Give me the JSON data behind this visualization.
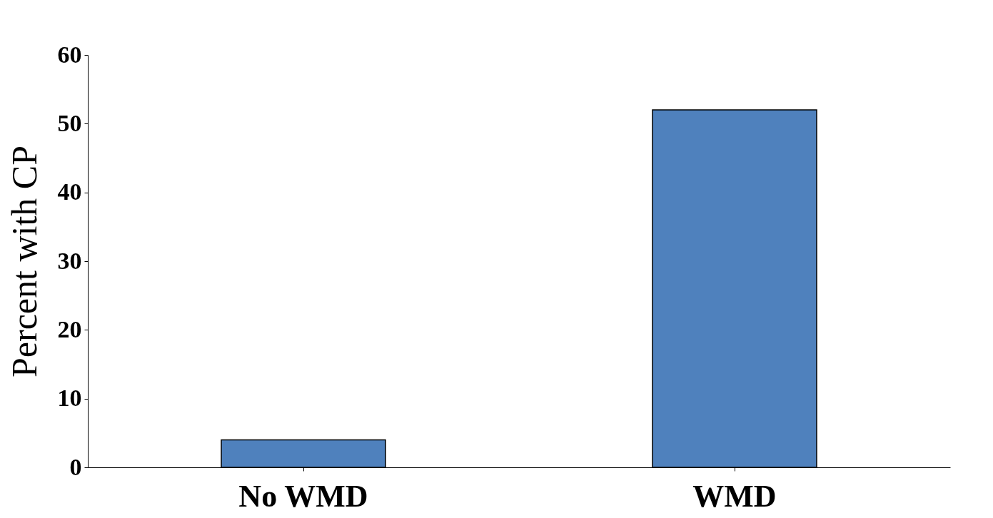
{
  "chart_data": {
    "type": "bar",
    "categories": [
      "No WMD",
      "WMD"
    ],
    "values": [
      4,
      52
    ],
    "color": "#4f81bd",
    "ylabel": "Percent with CP",
    "ylim": [
      0,
      60
    ],
    "yticks": [
      0,
      10,
      20,
      30,
      40,
      50,
      60
    ],
    "grid": false
  }
}
